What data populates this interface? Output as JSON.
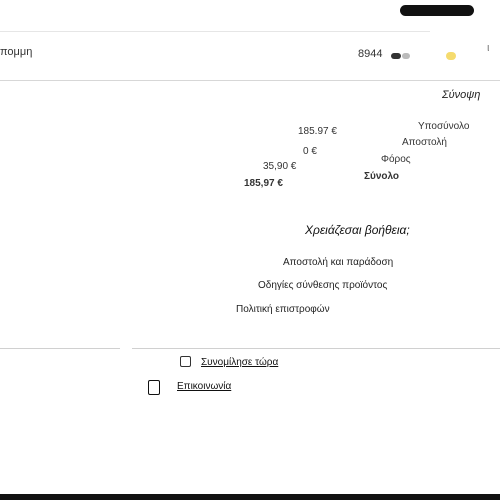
{
  "header": {
    "payment_label": "πομμη",
    "card_number": "8944",
    "right_edge_1": "",
    "right_edge_2": "ι"
  },
  "summary": {
    "title": "Σύνοψη",
    "rows": [
      {
        "label": "Υποσύνολο",
        "value": "185.97 €"
      },
      {
        "label": "Αποστολή",
        "value": "0 €"
      },
      {
        "label": "Φόρος",
        "value": "35,90 €"
      },
      {
        "label": "Σύνολο",
        "value": "185,97 €"
      }
    ]
  },
  "help": {
    "title": "Χρειάζεσαι βοήθεια;",
    "links": [
      "Αποστολή και παράδοση",
      "Οδηγίες σύνθεσης προϊόντος",
      "Πολιτική επιστροφών"
    ]
  },
  "footer": {
    "chat_label": "Συνομίλησε τώρα",
    "contact_label": "Επικοινωνία"
  },
  "icons": {
    "chat": "chat-icon",
    "contact": "phone-icon",
    "card": "card-icon",
    "cart": "cart-icon"
  },
  "colors": {
    "background": "#ffffff",
    "text": "#111111",
    "muted": "#333333",
    "divider": "#d7d7d7",
    "accent": "#f2d24a"
  }
}
